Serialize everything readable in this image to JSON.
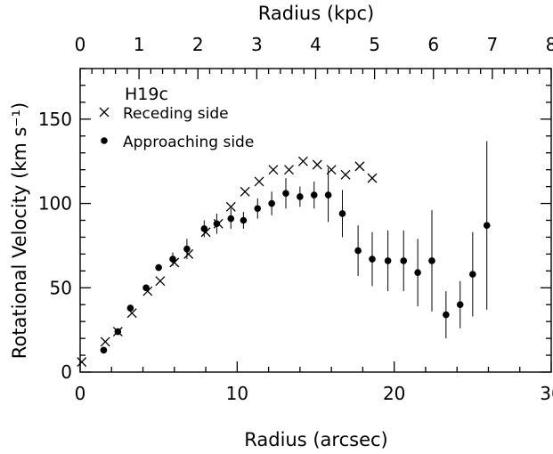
{
  "chart_data": {
    "type": "scatter",
    "title": "",
    "panel_label": "H19c",
    "xlabel": "Radius (arcsec)",
    "x2label": "Radius (kpc)",
    "ylabel": "Rotational Velocity (km s⁻¹)",
    "xlim": [
      0,
      30
    ],
    "x2lim": [
      0,
      8
    ],
    "ylim": [
      0,
      180
    ],
    "x_ticks": [
      0,
      10,
      20,
      30
    ],
    "x2_ticks": [
      0,
      1,
      2,
      3,
      4,
      5,
      6,
      7,
      8
    ],
    "y_ticks": [
      0,
      50,
      100,
      150
    ],
    "grid": false,
    "legend_position": "top-left",
    "series": [
      {
        "name": "Receding side",
        "marker": "cross",
        "x": [
          0.1,
          1.6,
          2.4,
          3.3,
          4.3,
          5.1,
          6.0,
          6.9,
          8.0,
          8.8,
          9.6,
          10.5,
          11.4,
          12.3,
          13.3,
          14.2,
          15.1,
          16.0,
          16.9,
          17.8,
          18.6
        ],
        "y": [
          6,
          18,
          24,
          35,
          48,
          54,
          65,
          70,
          83,
          88,
          98,
          107,
          113,
          120,
          120,
          125,
          123,
          120,
          117,
          122,
          115
        ],
        "err": [
          0,
          0,
          0,
          0,
          0,
          0,
          0,
          0,
          0,
          0,
          0,
          0,
          0,
          0,
          0,
          0,
          0,
          0,
          0,
          0,
          0
        ]
      },
      {
        "name": "Approaching side",
        "marker": "dot",
        "x": [
          1.5,
          2.4,
          3.2,
          4.2,
          5.0,
          5.9,
          6.8,
          7.9,
          8.7,
          9.6,
          10.4,
          11.3,
          12.2,
          13.1,
          14.0,
          14.9,
          15.8,
          16.7,
          17.7,
          18.6,
          19.6,
          20.6,
          21.5,
          22.4,
          23.3,
          24.2,
          25.0,
          25.9
        ],
        "y": [
          13,
          24,
          38,
          50,
          62,
          67,
          73,
          85,
          88,
          91,
          90,
          97,
          100,
          106,
          104,
          105,
          105,
          94,
          72,
          67,
          66,
          66,
          59,
          66,
          34,
          40,
          58,
          87
        ],
        "err": [
          2,
          2,
          2,
          2,
          2,
          4,
          6,
          5,
          6,
          6,
          5,
          6,
          7,
          9,
          6,
          8,
          16,
          14,
          15,
          16,
          18,
          18,
          20,
          30,
          14,
          14,
          25,
          50
        ]
      }
    ]
  }
}
